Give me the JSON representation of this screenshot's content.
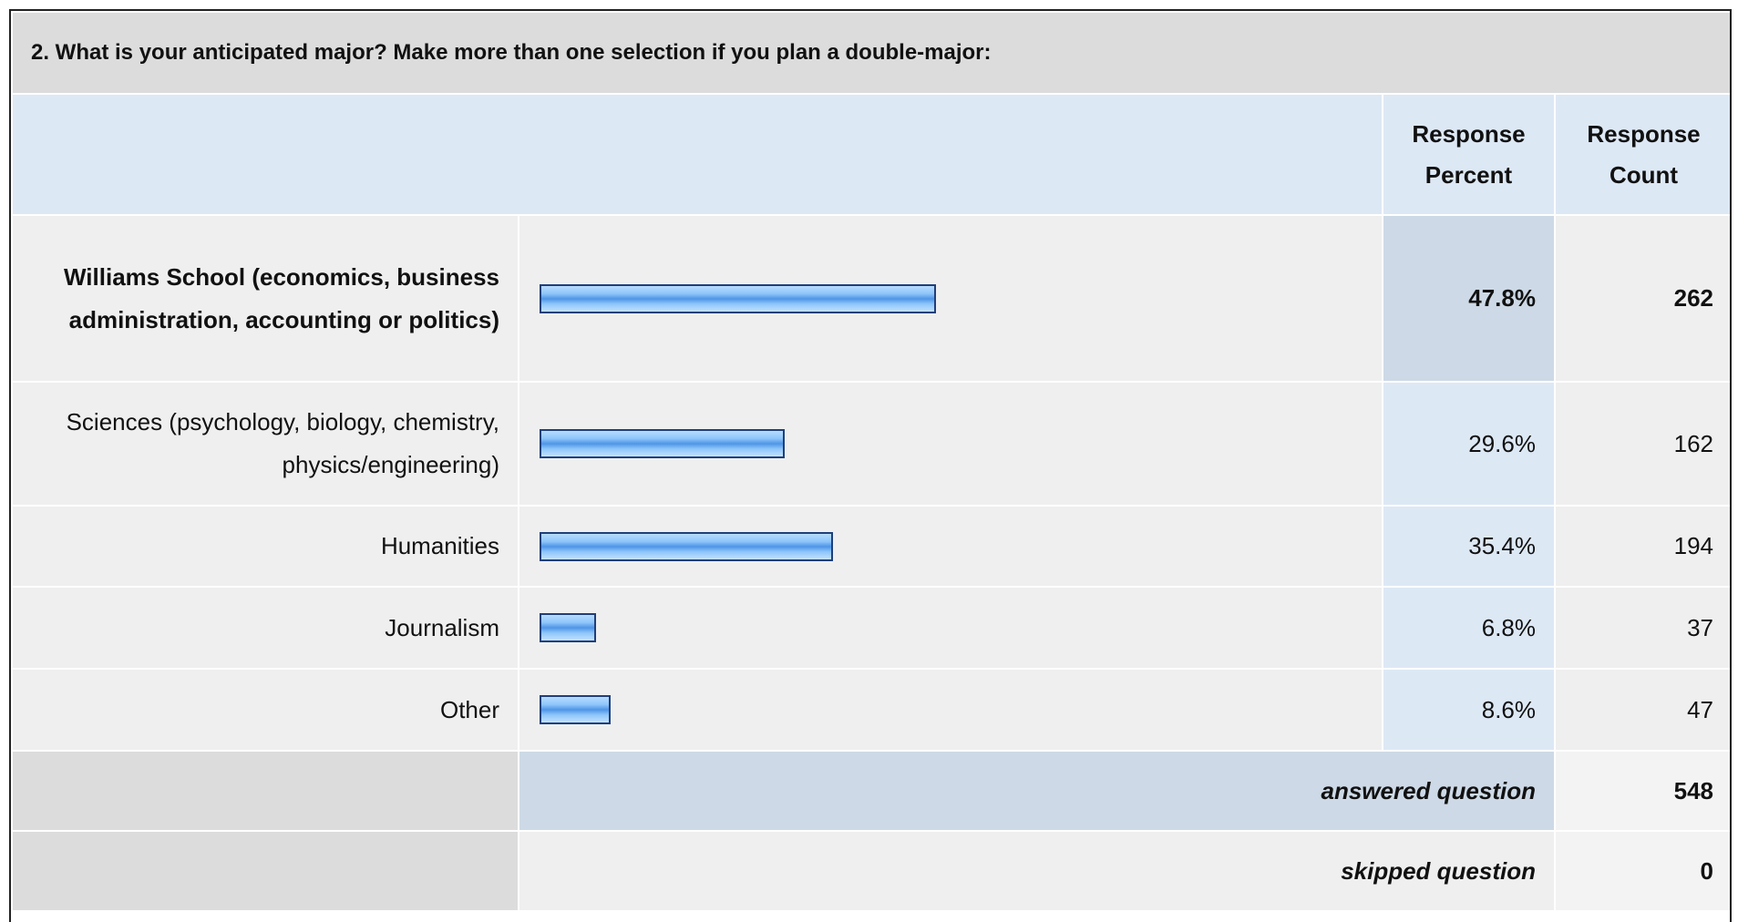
{
  "title": "2. What is your anticipated major? Make more than one selection if you plan a double-major:",
  "header": {
    "percent": "Response Percent",
    "count": "Response Count"
  },
  "chart_data": {
    "type": "bar",
    "orientation": "horizontal",
    "categories": [
      "Williams School (economics, business administration, accounting or politics)",
      "Sciences (psychology, biology, chemistry, physics/engineering)",
      "Humanities",
      "Journalism",
      "Other"
    ],
    "values": [
      47.8,
      29.6,
      35.4,
      6.8,
      8.6
    ],
    "value_labels": [
      "47.8%",
      "29.6%",
      "35.4%",
      "6.8%",
      "8.6%"
    ],
    "counts": [
      262,
      162,
      194,
      37,
      47
    ],
    "color": "#7fb8f2"
  },
  "summary": [
    {
      "label": "answered question",
      "value": 548
    },
    {
      "label": "skipped question",
      "value": 0
    }
  ]
}
